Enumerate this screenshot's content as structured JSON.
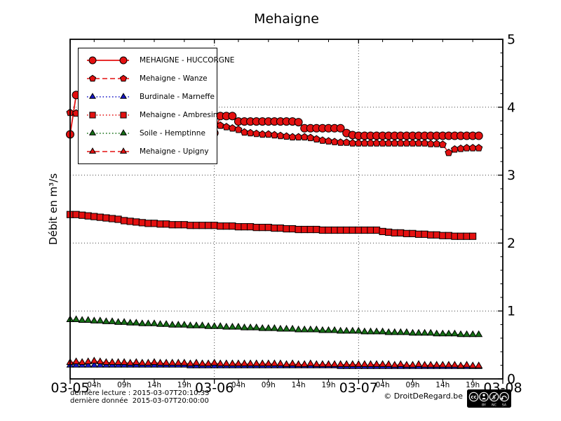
{
  "title": "Mehaigne",
  "footer": {
    "last_reading": "dernière lecture : 2015-03-07T20:10:33",
    "last_data": "dernière donnée  2015-03-07T20:00:00",
    "copyright": "© DroitDeRegard.be",
    "cc_badge": {
      "cc": "cc",
      "labels": [
        "BY",
        "NC",
        "SA"
      ]
    }
  },
  "chart_data": {
    "type": "line",
    "title": "Mehaigne",
    "ylabel": "Débit en m³/s",
    "ylim": [
      0,
      5
    ],
    "xlim": [
      0,
      72
    ],
    "x_unit": "hours since 2015-03-05T00:00",
    "grid": "dotted",
    "legend_position": "upper left",
    "y_ticks": [
      0,
      1,
      2,
      3,
      4,
      5
    ],
    "y_minor_step": 0.2,
    "y_gridlines": [
      1,
      2,
      3,
      4
    ],
    "x_gridlines": [
      24,
      48
    ],
    "x_day_ticks": [
      {
        "t": 0,
        "label": "03-05"
      },
      {
        "t": 24,
        "label": "03-06"
      },
      {
        "t": 48,
        "label": "03-07"
      },
      {
        "t": 72,
        "label": "03-08"
      }
    ],
    "x_hour_ticks": [
      {
        "offset": 4,
        "label": "04h"
      },
      {
        "offset": 9,
        "label": "09h"
      },
      {
        "offset": 14,
        "label": "14h"
      },
      {
        "offset": 19,
        "label": "19h"
      }
    ],
    "series": [
      {
        "name": "MEHAIGNE - HUCCORGNE",
        "color": "#e41010",
        "marker": "circle",
        "marker_r": 5.5,
        "line": "solid",
        "line_width": 1.8,
        "t0": 0,
        "step": 1,
        "values": [
          3.6,
          4.18,
          4.05,
          4.0,
          3.96,
          3.93,
          3.9,
          3.88,
          3.86,
          3.84,
          3.82,
          3.8,
          3.78,
          3.76,
          3.74,
          3.72,
          3.7,
          3.68,
          3.66,
          3.64,
          3.62,
          3.6,
          3.59,
          3.58,
          3.62,
          3.87,
          3.87,
          3.87,
          3.79,
          3.79,
          3.79,
          3.79,
          3.79,
          3.79,
          3.79,
          3.79,
          3.79,
          3.79,
          3.78,
          3.69,
          3.69,
          3.69,
          3.69,
          3.69,
          3.69,
          3.69,
          3.62,
          3.59,
          3.58,
          3.58,
          3.58,
          3.58,
          3.58,
          3.58,
          3.58,
          3.58,
          3.58,
          3.58,
          3.58,
          3.58,
          3.58,
          3.58,
          3.58,
          3.58,
          3.58,
          3.58,
          3.58,
          3.58,
          3.58
        ]
      },
      {
        "name": "Mehaigne - Wanze",
        "color": "#e41010",
        "marker": "pentagon",
        "marker_r": 5.2,
        "line": "dashed",
        "line_width": 1.5,
        "t0": 0,
        "step": 1,
        "values": [
          3.92,
          3.91,
          3.9,
          3.89,
          3.88,
          3.87,
          3.86,
          3.85,
          3.84,
          3.83,
          3.82,
          3.81,
          3.8,
          3.79,
          3.78,
          3.77,
          3.76,
          3.75,
          3.74,
          3.73,
          3.72,
          3.71,
          3.7,
          3.7,
          3.72,
          3.73,
          3.71,
          3.69,
          3.67,
          3.63,
          3.62,
          3.61,
          3.6,
          3.6,
          3.59,
          3.58,
          3.57,
          3.56,
          3.56,
          3.56,
          3.55,
          3.53,
          3.51,
          3.5,
          3.49,
          3.48,
          3.48,
          3.47,
          3.47,
          3.47,
          3.47,
          3.47,
          3.47,
          3.47,
          3.47,
          3.47,
          3.47,
          3.47,
          3.47,
          3.47,
          3.46,
          3.46,
          3.45,
          3.33,
          3.38,
          3.39,
          3.4,
          3.4,
          3.4
        ]
      },
      {
        "name": "Burdinale - Marneffe",
        "color": "#1616c8",
        "marker": "triangle",
        "marker_r": 5.2,
        "line": "dotted",
        "line_width": 1.4,
        "t0": 0,
        "step": 1,
        "values": [
          0.2,
          0.2,
          0.2,
          0.2,
          0.2,
          0.2,
          0.2,
          0.2,
          0.2,
          0.2,
          0.2,
          0.2,
          0.2,
          0.2,
          0.2,
          0.2,
          0.2,
          0.2,
          0.2,
          0.2,
          0.19,
          0.19,
          0.19,
          0.19,
          0.19,
          0.19,
          0.19,
          0.19,
          0.19,
          0.19,
          0.19,
          0.19,
          0.19,
          0.19,
          0.19,
          0.19,
          0.19,
          0.19,
          0.19,
          0.19,
          0.19,
          0.19,
          0.19,
          0.19,
          0.19,
          0.18,
          0.18,
          0.18,
          0.18,
          0.18,
          0.18,
          0.18,
          0.18,
          0.18,
          0.18,
          0.18,
          0.18,
          0.18,
          0.18,
          0.18,
          0.18,
          0.18,
          0.18,
          0.18,
          0.18,
          0.18,
          0.18,
          0.18,
          0.18
        ]
      },
      {
        "name": "Mehaigne - Ambresin",
        "color": "#e41010",
        "marker": "square",
        "marker_r": 4.6,
        "line": "dotted",
        "line_width": 1.4,
        "t0": 0,
        "step": 1,
        "values": [
          2.42,
          2.42,
          2.41,
          2.4,
          2.39,
          2.38,
          2.37,
          2.36,
          2.35,
          2.33,
          2.32,
          2.31,
          2.3,
          2.29,
          2.29,
          2.28,
          2.28,
          2.27,
          2.27,
          2.27,
          2.26,
          2.26,
          2.26,
          2.26,
          2.26,
          2.25,
          2.25,
          2.25,
          2.24,
          2.24,
          2.24,
          2.23,
          2.23,
          2.23,
          2.22,
          2.22,
          2.21,
          2.21,
          2.2,
          2.2,
          2.2,
          2.2,
          2.19,
          2.19,
          2.19,
          2.19,
          2.19,
          2.19,
          2.19,
          2.19,
          2.19,
          2.19,
          2.17,
          2.16,
          2.15,
          2.15,
          2.14,
          2.14,
          2.13,
          2.13,
          2.12,
          2.12,
          2.11,
          2.11,
          2.1,
          2.1,
          2.1,
          2.1
        ]
      },
      {
        "name": "Soile - Hemptinne",
        "color": "#167016",
        "marker": "triangle",
        "marker_r": 5.4,
        "line": "dotted",
        "line_width": 1.4,
        "t0": 0,
        "step": 1,
        "values": [
          0.87,
          0.87,
          0.86,
          0.86,
          0.85,
          0.85,
          0.84,
          0.84,
          0.83,
          0.83,
          0.82,
          0.82,
          0.81,
          0.81,
          0.81,
          0.8,
          0.8,
          0.79,
          0.79,
          0.79,
          0.78,
          0.78,
          0.78,
          0.77,
          0.77,
          0.77,
          0.76,
          0.76,
          0.76,
          0.75,
          0.75,
          0.75,
          0.74,
          0.74,
          0.74,
          0.73,
          0.73,
          0.73,
          0.72,
          0.72,
          0.72,
          0.72,
          0.71,
          0.71,
          0.71,
          0.7,
          0.7,
          0.7,
          0.7,
          0.69,
          0.69,
          0.69,
          0.69,
          0.68,
          0.68,
          0.68,
          0.68,
          0.67,
          0.67,
          0.67,
          0.67,
          0.66,
          0.66,
          0.66,
          0.66,
          0.65,
          0.65,
          0.65,
          0.65
        ]
      },
      {
        "name": "Mehaigne - Upigny",
        "color": "#e41010",
        "marker": "triangle",
        "marker_r": 5.4,
        "line": "dashed",
        "line_width": 1.5,
        "t0": 0,
        "step": 1,
        "values": [
          0.24,
          0.25,
          0.24,
          0.25,
          0.26,
          0.25,
          0.24,
          0.24,
          0.24,
          0.24,
          0.23,
          0.24,
          0.23,
          0.23,
          0.24,
          0.23,
          0.23,
          0.23,
          0.23,
          0.23,
          0.22,
          0.23,
          0.22,
          0.22,
          0.23,
          0.22,
          0.22,
          0.22,
          0.22,
          0.22,
          0.22,
          0.22,
          0.22,
          0.22,
          0.22,
          0.22,
          0.21,
          0.22,
          0.21,
          0.21,
          0.22,
          0.21,
          0.21,
          0.21,
          0.21,
          0.21,
          0.21,
          0.21,
          0.21,
          0.21,
          0.21,
          0.21,
          0.21,
          0.21,
          0.2,
          0.21,
          0.2,
          0.2,
          0.21,
          0.2,
          0.2,
          0.2,
          0.2,
          0.2,
          0.2,
          0.19,
          0.2,
          0.19,
          0.19
        ]
      }
    ]
  }
}
